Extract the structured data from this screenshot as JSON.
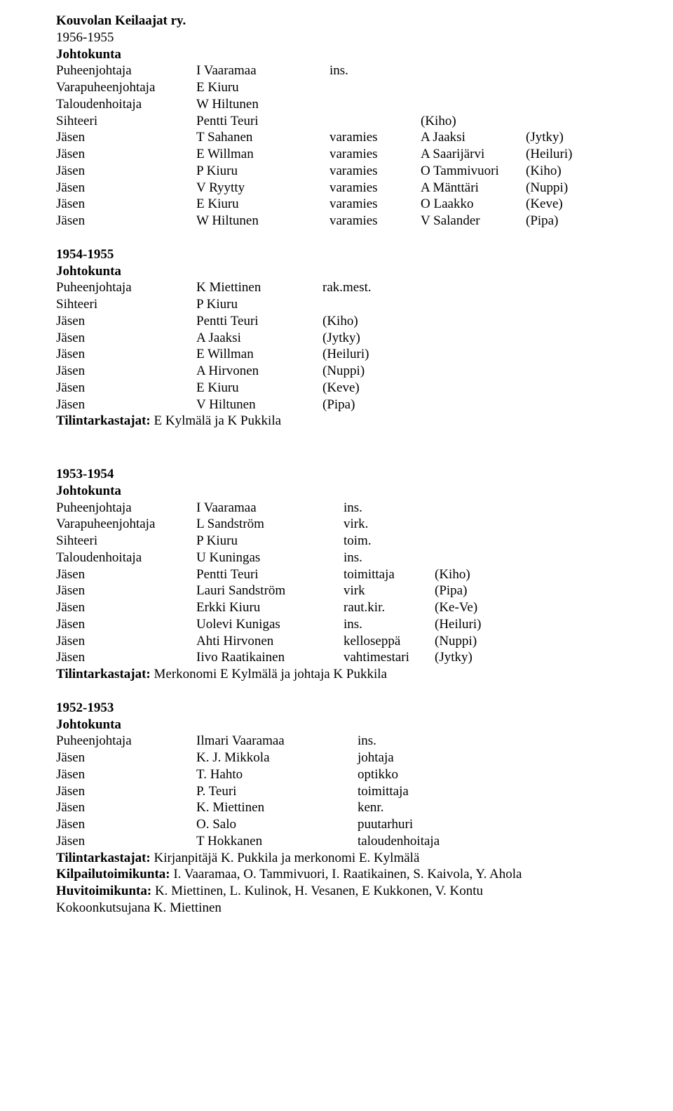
{
  "doc_title": "Kouvolan Keilaajat ry.",
  "section1": {
    "period": "1956-1955",
    "board_label": "Johtokunta",
    "rows": [
      {
        "role": "Puheenjohtaja",
        "name": "I Vaaramaa",
        "c3": "ins.",
        "c4": ""
      },
      {
        "role": "Varapuheenjohtaja",
        "name": "E Kiuru",
        "c3": "",
        "c4": ""
      },
      {
        "role": "Taloudenhoitaja",
        "name": "W Hiltunen",
        "c3": "",
        "c4": ""
      },
      {
        "role": "Sihteeri",
        "name": "Pentti Teuri",
        "c3": "",
        "c4": "(Kiho)"
      },
      {
        "role": "Jäsen",
        "name": "T Sahanen",
        "c3": "varamies",
        "c4": "A Jaaksi",
        "c5": "(Jytky)"
      },
      {
        "role": "Jäsen",
        "name": "E Willman",
        "c3": "varamies",
        "c4": "A Saarijärvi",
        "c5": "(Heiluri)"
      },
      {
        "role": "Jäsen",
        "name": "P Kiuru",
        "c3": "varamies",
        "c4": "O Tammivuori",
        "c5": "(Kiho)"
      },
      {
        "role": "Jäsen",
        "name": "V Ryytty",
        "c3": "varamies",
        "c4": "A Mänttäri",
        "c5": "(Nuppi)"
      },
      {
        "role": "Jäsen",
        "name": "E Kiuru",
        "c3": "varamies",
        "c4": "O Laakko",
        "c5": "(Keve)"
      },
      {
        "role": "Jäsen",
        "name": "W Hiltunen",
        "c3": "varamies",
        "c4": "V Salander",
        "c5": "(Pipa)"
      }
    ]
  },
  "section2": {
    "period": "1954-1955",
    "board_label": "Johtokunta",
    "rows": [
      {
        "role": "Puheenjohtaja",
        "name": "K Miettinen",
        "c3": "rak.mest."
      },
      {
        "role": "Sihteeri",
        "name": "P Kiuru",
        "c3": ""
      },
      {
        "role": "Jäsen",
        "name": "Pentti Teuri",
        "c3": "(Kiho)"
      },
      {
        "role": "Jäsen",
        "name": "A Jaaksi",
        "c3": "(Jytky)"
      },
      {
        "role": "Jäsen",
        "name": "E Willman",
        "c3": "(Heiluri)"
      },
      {
        "role": "Jäsen",
        "name": "A Hirvonen",
        "c3": "(Nuppi)"
      },
      {
        "role": "Jäsen",
        "name": "E Kiuru",
        "c3": "(Keve)"
      },
      {
        "role": "Jäsen",
        "name": "V Hiltunen",
        "c3": "(Pipa)"
      }
    ],
    "auditors_label": "Tilintarkastajat:",
    "auditors_text": " E Kylmälä ja K Pukkila"
  },
  "section3": {
    "period": "1953-1954",
    "board_label": "Johtokunta",
    "rows": [
      {
        "role": "Puheenjohtaja",
        "name": "I Vaaramaa",
        "c3": "ins.",
        "c4": ""
      },
      {
        "role": "Varapuheenjohtaja",
        "name": "L Sandström",
        "c3": "virk.",
        "c4": ""
      },
      {
        "role": "Sihteeri",
        "name": "P Kiuru",
        "c3": "toim.",
        "c4": ""
      },
      {
        "role": "Taloudenhoitaja",
        "name": "U Kuningas",
        "c3": "ins.",
        "c4": ""
      },
      {
        "role": "Jäsen",
        "name": "Pentti Teuri",
        "c3": "toimittaja",
        "c4": "(Kiho)"
      },
      {
        "role": "Jäsen",
        "name": "Lauri Sandström",
        "c3": "virk",
        "c4": "(Pipa)"
      },
      {
        "role": "Jäsen",
        "name": "Erkki Kiuru",
        "c3": "raut.kir.",
        "c4": "(Ke-Ve)"
      },
      {
        "role": "Jäsen",
        "name": "Uolevi Kunigas",
        "c3": "ins.",
        "c4": "(Heiluri)"
      },
      {
        "role": "Jäsen",
        "name": "Ahti Hirvonen",
        "c3": "kelloseppä",
        "c4": "(Nuppi)"
      },
      {
        "role": "Jäsen",
        "name": "Iivo Raatikainen",
        "c3": "vahtimestari",
        "c4": "(Jytky)"
      }
    ],
    "auditors_label": "Tilintarkastajat:",
    "auditors_text": " Merkonomi E Kylmälä ja johtaja K Pukkila"
  },
  "section4": {
    "period": "1952-1953",
    "board_label": "Johtokunta",
    "rows": [
      {
        "role": "Puheenjohtaja",
        "name": "Ilmari Vaaramaa",
        "c3": "ins."
      },
      {
        "role": "Jäsen",
        "name": "K. J. Mikkola",
        "c3": "johtaja"
      },
      {
        "role": "Jäsen",
        "name": "T. Hahto",
        "c3": "optikko"
      },
      {
        "role": "Jäsen",
        "name": "P. Teuri",
        "c3": "toimittaja"
      },
      {
        "role": "Jäsen",
        "name": "K. Miettinen",
        "c3": "kenr."
      },
      {
        "role": "Jäsen",
        "name": "O. Salo",
        "c3": "puutarhuri"
      },
      {
        "role": "Jäsen",
        "name": "T Hokkanen",
        "c3": "taloudenhoitaja"
      }
    ],
    "auditors_label": "Tilintarkastajat:",
    "auditors_text": " Kirjanpitäjä K. Pukkila ja merkonomi E. Kylmälä",
    "comp_label": "Kilpailutoimikunta:",
    "comp_text": " I. Vaaramaa, O. Tammivuori, I. Raatikainen, S. Kaivola, Y. Ahola",
    "pleasure_label": "Huvitoimikunta:",
    "pleasure_text": " K. Miettinen, L. Kulinok, H. Vesanen, E Kukkonen, V. Kontu",
    "convener": "Kokoonkutsujana K. Miettinen"
  }
}
